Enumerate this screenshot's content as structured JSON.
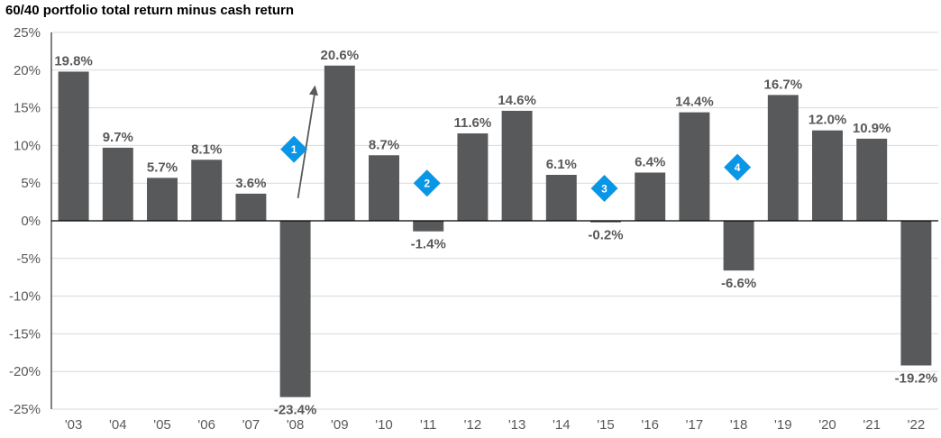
{
  "chart_data": {
    "type": "bar",
    "title": "60/40 portfolio total return minus cash return",
    "categories": [
      "'03",
      "'04",
      "'05",
      "'06",
      "'07",
      "'08",
      "'09",
      "'10",
      "'11",
      "'12",
      "'13",
      "'14",
      "'15",
      "'16",
      "'17",
      "'18",
      "'19",
      "'20",
      "'21",
      "'22"
    ],
    "values": [
      19.8,
      9.7,
      5.7,
      8.1,
      3.6,
      -23.4,
      20.6,
      8.7,
      -1.4,
      11.6,
      14.6,
      6.1,
      -0.2,
      6.4,
      14.4,
      -6.6,
      16.7,
      12.0,
      10.9,
      -19.2
    ],
    "data_labels": [
      "19.8%",
      "9.7%",
      "5.7%",
      "8.1%",
      "3.6%",
      "-23.4%",
      "20.6%",
      "8.7%",
      "-1.4%",
      "11.6%",
      "14.6%",
      "6.1%",
      "-0.2%",
      "6.4%",
      "14.4%",
      "-6.6%",
      "16.7%",
      "12.0%",
      "10.9%",
      "-19.2%"
    ],
    "y_ticks": [
      25,
      20,
      15,
      10,
      5,
      0,
      -5,
      -10,
      -15,
      -20,
      -25
    ],
    "y_tick_labels": [
      "25%",
      "20%",
      "15%",
      "10%",
      "5%",
      "0%",
      "-5%",
      "-10%",
      "-15%",
      "-20%",
      "-25%"
    ],
    "ylim": [
      -25,
      25
    ],
    "grid": true,
    "bar_color": "#58595b",
    "grid_color": "#d9d9d9",
    "markers": [
      {
        "label": "1",
        "after_category": "'07",
        "value": 9.5,
        "color": "#0a96e6"
      },
      {
        "label": "2",
        "after_category": "'10",
        "value": 5.0,
        "color": "#0a96e6"
      },
      {
        "label": "3",
        "after_category": "'14",
        "value": 4.3,
        "color": "#0a96e6"
      },
      {
        "label": "4",
        "after_category": "'17",
        "value": 7.1,
        "color": "#0a96e6"
      }
    ],
    "arrow": {
      "from_value": 3.0,
      "to_value": 18.0,
      "color": "#595959"
    }
  }
}
